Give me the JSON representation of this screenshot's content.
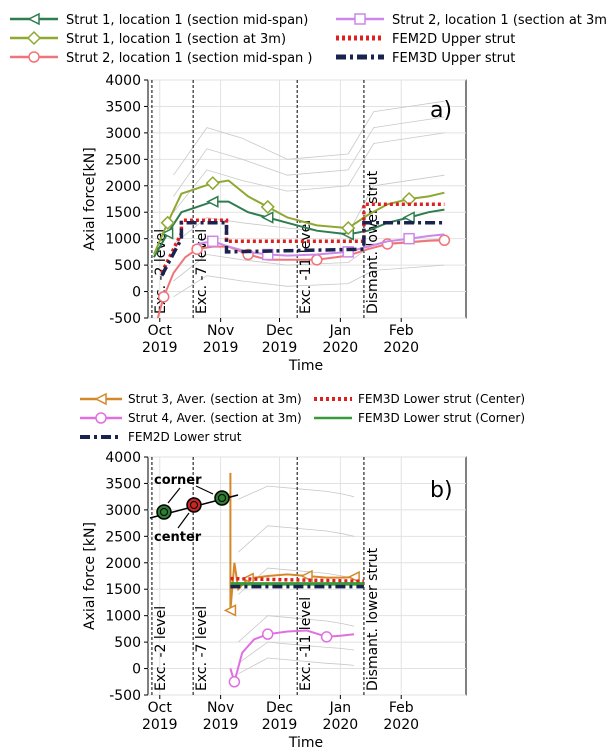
{
  "chart_data": [
    {
      "type": "line",
      "panel_label": "a)",
      "xlabel": "Time",
      "ylabel": "Axial force[kN]",
      "ylim": [
        -500,
        4000
      ],
      "xlim": [
        "2019-09-25",
        "2020-03-05"
      ],
      "yticks": [
        -500,
        0,
        500,
        1000,
        1500,
        2000,
        2500,
        3000,
        3500,
        4000
      ],
      "xticks": [
        {
          "date": "2019-10-01",
          "month": "Oct",
          "year": "2019"
        },
        {
          "date": "2019-11-01",
          "month": "Nov",
          "year": "2019"
        },
        {
          "date": "2019-12-01",
          "month": "Dec",
          "year": "2019"
        },
        {
          "date": "2020-01-01",
          "month": "Jan",
          "year": "2020"
        },
        {
          "date": "2020-02-01",
          "month": "Feb",
          "year": "2020"
        }
      ],
      "grid": true,
      "legend_position": "top",
      "events": [
        {
          "date": "2019-09-27",
          "label": "Exc. -2 level"
        },
        {
          "date": "2019-10-18",
          "label": "Exc. -7 level"
        },
        {
          "date": "2019-12-10",
          "label": "Exc. -11 level"
        },
        {
          "date": "2020-01-13",
          "label": "Dismant. lower strut"
        }
      ],
      "series": [
        {
          "name": "Strut 1, location 1 (section mid-span)",
          "color": "#2e7d4f",
          "marker": "triangle-left",
          "points": [
            [
              "2019-09-28",
              650
            ],
            [
              "2019-10-05",
              1100
            ],
            [
              "2019-10-12",
              1500
            ],
            [
              "2019-10-20",
              1600
            ],
            [
              "2019-10-28",
              1700
            ],
            [
              "2019-11-05",
              1700
            ],
            [
              "2019-11-15",
              1500
            ],
            [
              "2019-11-25",
              1400
            ],
            [
              "2019-12-05",
              1300
            ],
            [
              "2019-12-20",
              1150
            ],
            [
              "2020-01-05",
              1080
            ],
            [
              "2020-01-15",
              1150
            ],
            [
              "2020-01-25",
              1300
            ],
            [
              "2020-02-05",
              1400
            ],
            [
              "2020-02-15",
              1500
            ],
            [
              "2020-02-23",
              1550
            ]
          ]
        },
        {
          "name": "Strut 1, location 1 (section at 3m)",
          "color": "#8ea832",
          "marker": "diamond",
          "points": [
            [
              "2019-09-28",
              700
            ],
            [
              "2019-10-05",
              1300
            ],
            [
              "2019-10-12",
              1850
            ],
            [
              "2019-10-20",
              1950
            ],
            [
              "2019-10-28",
              2050
            ],
            [
              "2019-11-05",
              2100
            ],
            [
              "2019-11-15",
              1800
            ],
            [
              "2019-11-25",
              1600
            ],
            [
              "2019-12-05",
              1400
            ],
            [
              "2019-12-20",
              1250
            ],
            [
              "2020-01-05",
              1200
            ],
            [
              "2020-01-15",
              1450
            ],
            [
              "2020-01-25",
              1650
            ],
            [
              "2020-02-05",
              1750
            ],
            [
              "2020-02-15",
              1800
            ],
            [
              "2020-02-23",
              1870
            ]
          ]
        },
        {
          "name": "Strut 2, location 1 (section mid-span )",
          "color": "#f0757a",
          "marker": "circle",
          "points": [
            [
              "2019-09-30",
              -500
            ],
            [
              "2019-10-03",
              -100
            ],
            [
              "2019-10-08",
              350
            ],
            [
              "2019-10-14",
              650
            ],
            [
              "2019-10-20",
              800
            ],
            [
              "2019-10-28",
              850
            ],
            [
              "2019-11-05",
              850
            ],
            [
              "2019-11-15",
              700
            ],
            [
              "2019-11-25",
              600
            ],
            [
              "2019-12-05",
              600
            ],
            [
              "2019-12-20",
              600
            ],
            [
              "2020-01-05",
              680
            ],
            [
              "2020-01-15",
              800
            ],
            [
              "2020-01-25",
              900
            ],
            [
              "2020-02-05",
              930
            ],
            [
              "2020-02-15",
              960
            ],
            [
              "2020-02-23",
              970
            ]
          ]
        },
        {
          "name": "Strut 2, location 1 (section at 3m)",
          "color": "#cc88e8",
          "marker": "square",
          "points": [
            [
              "2019-10-20",
              900
            ],
            [
              "2019-10-28",
              950
            ],
            [
              "2019-11-05",
              850
            ],
            [
              "2019-11-15",
              750
            ],
            [
              "2019-11-25",
              700
            ],
            [
              "2019-12-05",
              680
            ],
            [
              "2019-12-20",
              700
            ],
            [
              "2020-01-05",
              750
            ],
            [
              "2020-01-15",
              850
            ],
            [
              "2020-01-25",
              950
            ],
            [
              "2020-02-05",
              1000
            ],
            [
              "2020-02-15",
              1050
            ],
            [
              "2020-02-23",
              1080
            ]
          ]
        },
        {
          "name": "FEM2D Upper strut",
          "color": "#e02020",
          "dash": "dotted",
          "points": [
            [
              "2019-10-02",
              350
            ],
            [
              "2019-10-12",
              1100
            ],
            [
              "2019-10-12",
              1350
            ],
            [
              "2019-11-04",
              1350
            ],
            [
              "2019-11-04",
              950
            ],
            [
              "2020-01-13",
              950
            ],
            [
              "2020-01-13",
              1650
            ],
            [
              "2020-02-23",
              1650
            ]
          ]
        },
        {
          "name": "FEM3D Upper strut",
          "color": "#1a2350",
          "dash": "dashdot",
          "points": [
            [
              "2019-10-02",
              300
            ],
            [
              "2019-10-12",
              1000
            ],
            [
              "2019-10-12",
              1300
            ],
            [
              "2019-11-04",
              1300
            ],
            [
              "2019-11-04",
              750
            ],
            [
              "2020-01-13",
              800
            ],
            [
              "2020-01-13",
              1300
            ],
            [
              "2020-02-23",
              1300
            ]
          ]
        }
      ]
    },
    {
      "type": "line",
      "panel_label": "b)",
      "xlabel": "Time",
      "ylabel": "Axial force [kN]",
      "ylim": [
        -500,
        4000
      ],
      "xlim": [
        "2019-09-25",
        "2020-03-05"
      ],
      "yticks": [
        -500,
        0,
        500,
        1000,
        1500,
        2000,
        2500,
        3000,
        3500,
        4000
      ],
      "xticks": [
        {
          "date": "2019-10-01",
          "month": "Oct",
          "year": "2019"
        },
        {
          "date": "2019-11-01",
          "month": "Nov",
          "year": "2019"
        },
        {
          "date": "2019-12-01",
          "month": "Dec",
          "year": "2019"
        },
        {
          "date": "2020-01-01",
          "month": "Jan",
          "year": "2020"
        },
        {
          "date": "2020-02-01",
          "month": "Feb",
          "year": "2020"
        }
      ],
      "grid": true,
      "legend_position": "top",
      "events": [
        {
          "date": "2019-09-27",
          "label": "Exc. -2 level"
        },
        {
          "date": "2019-10-18",
          "label": "Exc. -7 level"
        },
        {
          "date": "2019-12-10",
          "label": "Exc. -11 level"
        },
        {
          "date": "2020-01-13",
          "label": "Dismant. lower strut"
        }
      ],
      "inset": {
        "corner_label": "corner",
        "center_label": "center"
      },
      "series": [
        {
          "name": "Strut 3, Aver. (section at 3m)",
          "color": "#d4882a",
          "marker": "triangle-left",
          "points": [
            [
              "2019-11-06",
              3700
            ],
            [
              "2019-11-06",
              1100
            ],
            [
              "2019-11-08",
              2000
            ],
            [
              "2019-11-10",
              1500
            ],
            [
              "2019-11-15",
              1700
            ],
            [
              "2019-11-25",
              1750
            ],
            [
              "2019-12-05",
              1780
            ],
            [
              "2019-12-15",
              1750
            ],
            [
              "2019-12-25",
              1720
            ],
            [
              "2020-01-02",
              1720
            ],
            [
              "2020-01-08",
              1730
            ]
          ]
        },
        {
          "name": "Strut 4, Aver. (section at 3m)",
          "color": "#e070e0",
          "marker": "circle",
          "points": [
            [
              "2019-11-06",
              0
            ],
            [
              "2019-11-08",
              -250
            ],
            [
              "2019-11-12",
              300
            ],
            [
              "2019-11-18",
              550
            ],
            [
              "2019-11-25",
              650
            ],
            [
              "2019-12-05",
              700
            ],
            [
              "2019-12-15",
              720
            ],
            [
              "2019-12-25",
              600
            ],
            [
              "2020-01-01",
              620
            ],
            [
              "2020-01-08",
              650
            ]
          ]
        },
        {
          "name": "FEM3D Lower strut (Center)",
          "color": "#e02020",
          "dash": "dotted",
          "points": [
            [
              "2019-11-06",
              1700
            ],
            [
              "2020-01-13",
              1650
            ]
          ]
        },
        {
          "name": "FEM3D Lower strut (Corner)",
          "color": "#3a9a3a",
          "dash": "solid",
          "points": [
            [
              "2019-11-06",
              1600
            ],
            [
              "2020-01-13",
              1600
            ]
          ]
        },
        {
          "name": "FEM2D Lower strut",
          "color": "#1a2350",
          "dash": "dashdot",
          "points": [
            [
              "2019-11-06",
              1550
            ],
            [
              "2020-01-13",
              1550
            ]
          ]
        }
      ]
    }
  ]
}
